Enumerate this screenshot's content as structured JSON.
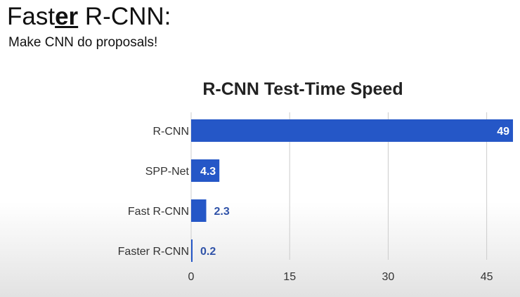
{
  "slide": {
    "title_pre": "Fast",
    "title_emph": "er",
    "title_post": " R-CNN:",
    "subtitle": "Make CNN do proposals!"
  },
  "colors": {
    "bar": "#2557c7",
    "label_inside": "#ffffff",
    "label_outside": "#2f52a8",
    "grid": "#cccccc"
  },
  "chart_data": {
    "type": "bar",
    "orientation": "horizontal",
    "title": "R-CNN Test-Time Speed",
    "categories": [
      "R-CNN",
      "SPP-Net",
      "Fast R-CNN",
      "Faster R-CNN"
    ],
    "values": [
      49,
      4.3,
      2.3,
      0.2
    ],
    "data_labels": [
      "49",
      "4.3",
      "2.3",
      "0.2"
    ],
    "xlabel": "",
    "ylabel": "",
    "xlim": [
      0,
      49
    ],
    "xticks": [
      0,
      15,
      30,
      45
    ],
    "grid": true,
    "legend": "none"
  }
}
